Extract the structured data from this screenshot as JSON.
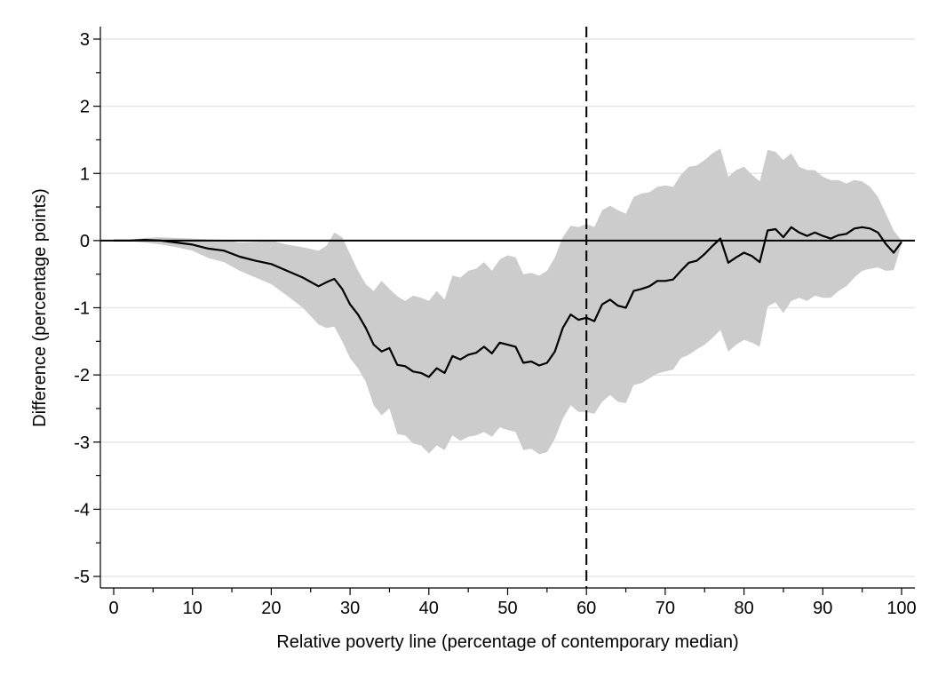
{
  "chart_data": {
    "type": "line",
    "title": "",
    "xlabel": "Relative poverty line (percentage of contemporary median)",
    "ylabel": "Difference (percentage points)",
    "xlim": [
      0,
      100
    ],
    "ylim": [
      -5,
      3
    ],
    "x_ticks": [
      0,
      10,
      20,
      30,
      40,
      50,
      60,
      70,
      80,
      90,
      100
    ],
    "x_tick_labels": [
      "0",
      "10",
      "20",
      "30",
      "40",
      "50",
      "60",
      "70",
      "80",
      "90",
      "100"
    ],
    "x_minor_ticks": [
      5,
      15,
      25,
      35,
      45,
      55,
      65,
      75,
      85,
      95
    ],
    "y_ticks": [
      -5,
      -4,
      -3,
      -2,
      -1,
      0,
      1,
      2,
      3
    ],
    "y_tick_labels": [
      "-5",
      "-4",
      "-3",
      "-2",
      "-1",
      "0",
      "1",
      "2",
      "3"
    ],
    "y_minor_ticks": [
      -4.5,
      -3.5,
      -2.5,
      -1.5,
      -0.5,
      0.5,
      1.5,
      2.5
    ],
    "grid": true,
    "reference_lines": [
      {
        "orientation": "horizontal",
        "value": 0,
        "style": "solid",
        "color": "#000000"
      },
      {
        "orientation": "vertical",
        "value": 60,
        "style": "dashed",
        "color": "#000000"
      }
    ],
    "colors": {
      "line": "#000000",
      "band": "#cccccc",
      "grid": "#e6e6e6"
    },
    "series": [
      {
        "x": [
          0,
          2,
          4,
          6,
          8,
          10,
          12,
          14,
          16,
          18,
          20,
          22,
          24,
          26,
          27,
          28,
          29,
          30,
          31,
          32,
          33,
          34,
          35,
          36,
          37,
          38,
          39,
          40,
          41,
          42,
          43,
          44,
          45,
          46,
          47,
          48,
          49,
          50,
          51,
          52,
          53,
          54,
          55,
          56,
          57,
          58,
          59,
          60,
          61,
          62,
          63,
          64,
          65,
          66,
          67,
          68,
          69,
          70,
          71,
          72,
          73,
          74,
          75,
          76,
          77,
          78,
          79,
          80,
          81,
          82,
          83,
          84,
          85,
          86,
          87,
          88,
          89,
          90,
          91,
          92,
          93,
          94,
          95,
          96,
          97,
          98,
          99,
          100
        ],
        "y": [
          0,
          0,
          0.01,
          0,
          -0.03,
          -0.06,
          -0.12,
          -0.15,
          -0.24,
          -0.3,
          -0.35,
          -0.45,
          -0.55,
          -0.68,
          -0.62,
          -0.57,
          -0.72,
          -0.95,
          -1.1,
          -1.3,
          -1.55,
          -1.65,
          -1.6,
          -1.85,
          -1.87,
          -1.95,
          -1.97,
          -2.03,
          -1.9,
          -1.97,
          -1.72,
          -1.77,
          -1.7,
          -1.67,
          -1.58,
          -1.68,
          -1.52,
          -1.55,
          -1.58,
          -1.82,
          -1.8,
          -1.86,
          -1.82,
          -1.65,
          -1.3,
          -1.1,
          -1.18,
          -1.15,
          -1.2,
          -0.95,
          -0.88,
          -0.97,
          -1.0,
          -0.75,
          -0.72,
          -0.68,
          -0.6,
          -0.6,
          -0.58,
          -0.45,
          -0.33,
          -0.3,
          -0.2,
          -0.08,
          0.03,
          -0.33,
          -0.25,
          -0.18,
          -0.23,
          -0.32,
          0.15,
          0.17,
          0.05,
          0.2,
          0.12,
          0.07,
          0.12,
          0.07,
          0.03,
          0.08,
          0.1,
          0.18,
          0.2,
          0.18,
          0.12,
          -0.05,
          -0.18,
          -0.02
        ]
      },
      {
        "x": [
          0,
          2,
          4,
          6,
          8,
          10,
          12,
          14,
          16,
          18,
          20,
          22,
          24,
          26,
          27,
          28,
          29,
          30,
          31,
          32,
          33,
          34,
          35,
          36,
          37,
          38,
          39,
          40,
          41,
          42,
          43,
          44,
          45,
          46,
          47,
          48,
          49,
          50,
          51,
          52,
          53,
          54,
          55,
          56,
          57,
          58,
          59,
          60,
          61,
          62,
          63,
          64,
          65,
          66,
          67,
          68,
          69,
          70,
          71,
          72,
          73,
          74,
          75,
          76,
          77,
          78,
          79,
          80,
          81,
          82,
          83,
          84,
          85,
          86,
          87,
          88,
          89,
          90,
          91,
          92,
          93,
          94,
          95,
          96,
          97,
          98,
          99,
          100
        ],
        "y": [
          0,
          0.01,
          0.04,
          0.05,
          0.04,
          0.03,
          0.02,
          0.01,
          -0.03,
          -0.02,
          0.0,
          -0.06,
          -0.1,
          -0.15,
          -0.08,
          0.12,
          0.05,
          -0.2,
          -0.45,
          -0.65,
          -0.75,
          -0.6,
          -0.72,
          -0.83,
          -0.9,
          -0.82,
          -0.85,
          -0.9,
          -0.75,
          -0.88,
          -0.52,
          -0.55,
          -0.45,
          -0.42,
          -0.32,
          -0.45,
          -0.28,
          -0.22,
          -0.25,
          -0.5,
          -0.48,
          -0.52,
          -0.45,
          -0.25,
          0.05,
          0.22,
          0.2,
          0.25,
          0.2,
          0.45,
          0.52,
          0.45,
          0.4,
          0.65,
          0.7,
          0.72,
          0.8,
          0.82,
          0.8,
          0.98,
          1.1,
          1.12,
          1.2,
          1.3,
          1.37,
          0.95,
          1.05,
          1.1,
          0.98,
          0.88,
          1.35,
          1.32,
          1.2,
          1.3,
          1.1,
          1.05,
          1.05,
          0.95,
          0.9,
          0.9,
          0.85,
          0.9,
          0.88,
          0.8,
          0.65,
          0.4,
          0.15,
          0.0
        ]
      },
      {
        "x": [
          0,
          2,
          4,
          6,
          8,
          10,
          12,
          14,
          16,
          18,
          20,
          22,
          24,
          26,
          27,
          28,
          29,
          30,
          31,
          32,
          33,
          34,
          35,
          36,
          37,
          38,
          39,
          40,
          41,
          42,
          43,
          44,
          45,
          46,
          47,
          48,
          49,
          50,
          51,
          52,
          53,
          54,
          55,
          56,
          57,
          58,
          59,
          60,
          61,
          62,
          63,
          64,
          65,
          66,
          67,
          68,
          69,
          70,
          71,
          72,
          73,
          74,
          75,
          76,
          77,
          78,
          79,
          80,
          81,
          82,
          83,
          84,
          85,
          86,
          87,
          88,
          89,
          90,
          91,
          92,
          93,
          94,
          95,
          96,
          97,
          98,
          99,
          100
        ],
        "y": [
          0,
          -0.01,
          -0.03,
          -0.06,
          -0.1,
          -0.15,
          -0.26,
          -0.32,
          -0.45,
          -0.55,
          -0.65,
          -0.82,
          -1.0,
          -1.25,
          -1.3,
          -1.28,
          -1.5,
          -1.75,
          -1.9,
          -2.1,
          -2.45,
          -2.6,
          -2.5,
          -2.88,
          -2.9,
          -3.02,
          -3.05,
          -3.17,
          -3.05,
          -3.12,
          -2.9,
          -2.98,
          -2.92,
          -2.9,
          -2.85,
          -2.92,
          -2.78,
          -2.82,
          -2.85,
          -3.12,
          -3.1,
          -3.18,
          -3.15,
          -2.95,
          -2.65,
          -2.45,
          -2.55,
          -2.55,
          -2.58,
          -2.4,
          -2.3,
          -2.4,
          -2.42,
          -2.15,
          -2.12,
          -2.05,
          -1.98,
          -1.95,
          -1.92,
          -1.75,
          -1.7,
          -1.62,
          -1.55,
          -1.45,
          -1.33,
          -1.65,
          -1.55,
          -1.48,
          -1.52,
          -1.58,
          -0.98,
          -0.92,
          -1.08,
          -0.9,
          -0.85,
          -0.9,
          -0.82,
          -0.85,
          -0.85,
          -0.75,
          -0.68,
          -0.55,
          -0.45,
          -0.42,
          -0.4,
          -0.45,
          -0.44,
          -0.05
        ]
      }
    ]
  }
}
